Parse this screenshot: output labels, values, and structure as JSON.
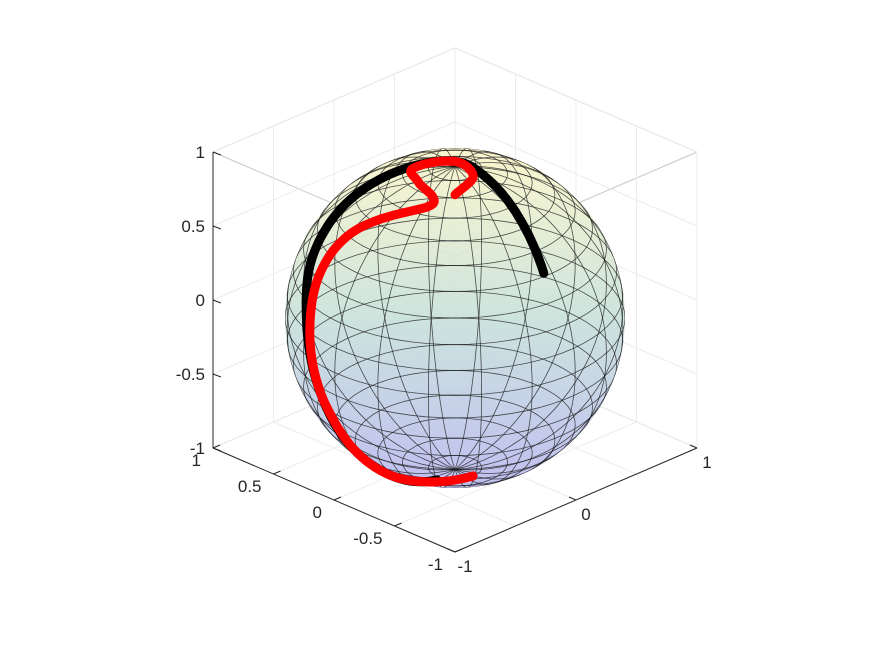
{
  "chart_data": {
    "type": "line",
    "subtype": "3d-sphere-trajectory",
    "title": "",
    "xlabel": "",
    "ylabel": "",
    "zlabel": "",
    "xlim": [
      -1,
      1
    ],
    "ylim": [
      -1,
      1
    ],
    "zlim": [
      -1,
      1
    ],
    "x_ticks": [
      "-1",
      "0",
      "1"
    ],
    "y_ticks": [
      "-1",
      "-0.5",
      "0",
      "0.5",
      "1"
    ],
    "z_ticks": [
      "-1",
      "-0.5",
      "0",
      "0.5",
      "1"
    ],
    "grid": true,
    "box": true,
    "surface": {
      "shape": "unit sphere",
      "mesh": true,
      "colormap": [
        "#b7b7ef",
        "#c6e0d9",
        "#fbf6c8"
      ]
    },
    "series": [
      {
        "color": "#000000",
        "points": [
          [
            -0.05,
            -0.7,
            0.53
          ],
          [
            0.05,
            -0.2,
            0.86
          ],
          [
            0.05,
            0.05,
            0.98
          ],
          [
            -0.2,
            0.28,
            0.92
          ],
          [
            -0.5,
            0.45,
            0.75
          ],
          [
            -0.75,
            0.45,
            0.5
          ],
          [
            -0.92,
            0.3,
            0.2
          ],
          [
            -0.96,
            0.15,
            -0.2
          ],
          [
            -0.85,
            0.05,
            -0.55
          ],
          [
            -0.55,
            -0.05,
            -0.85
          ],
          [
            -0.2,
            -0.05,
            -0.98
          ]
        ]
      },
      {
        "color": "#ff0000",
        "points": [
          [
            -0.2,
            -0.2,
            0.95
          ],
          [
            0.0,
            -0.15,
            0.98
          ],
          [
            0.05,
            0.05,
            0.99
          ],
          [
            -0.15,
            0.2,
            0.96
          ],
          [
            -0.25,
            0.05,
            0.96
          ],
          [
            -0.35,
            -0.15,
            0.92
          ],
          [
            -0.65,
            0.2,
            0.72
          ],
          [
            -0.82,
            0.3,
            0.48
          ],
          [
            -0.95,
            0.25,
            0.15
          ],
          [
            -0.97,
            0.15,
            -0.2
          ],
          [
            -0.92,
            0.08,
            -0.4
          ],
          [
            -0.7,
            0.0,
            -0.72
          ],
          [
            -0.35,
            -0.05,
            -0.94
          ],
          [
            0.0,
            -0.15,
            -0.99
          ]
        ]
      }
    ]
  }
}
